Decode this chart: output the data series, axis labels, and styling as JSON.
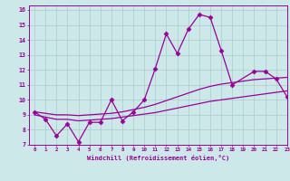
{
  "xlabel": "Windchill (Refroidissement éolien,°C)",
  "xlim": [
    -0.5,
    23
  ],
  "ylim": [
    7,
    16.3
  ],
  "bg_color": "#cce8e8",
  "line_color": "#990099",
  "grid_color": "#aacccc",
  "series": [
    {
      "x": [
        0,
        1,
        2,
        3,
        4,
        5,
        6,
        7,
        8,
        9,
        10,
        11,
        12,
        13,
        14,
        15,
        16,
        17,
        18,
        20,
        21,
        22,
        23
      ],
      "y": [
        9.2,
        8.7,
        7.6,
        8.4,
        7.2,
        8.5,
        8.5,
        10.0,
        8.6,
        9.2,
        10.0,
        12.1,
        14.4,
        13.1,
        14.7,
        15.7,
        15.5,
        13.3,
        11.0,
        11.9,
        11.9,
        11.4,
        10.2
      ],
      "marker": "D",
      "markersize": 2.5,
      "lw": 0.9
    },
    {
      "x": [
        0,
        1,
        2,
        3,
        4,
        5,
        6,
        7,
        8,
        9,
        10,
        11,
        12,
        13,
        14,
        15,
        16,
        17,
        18,
        19,
        20,
        21,
        22,
        23
      ],
      "y": [
        9.0,
        8.85,
        8.7,
        8.7,
        8.6,
        8.65,
        8.7,
        8.75,
        8.85,
        8.95,
        9.05,
        9.15,
        9.3,
        9.45,
        9.6,
        9.75,
        9.9,
        10.0,
        10.1,
        10.2,
        10.3,
        10.4,
        10.5,
        10.6
      ],
      "marker": null,
      "markersize": 0,
      "lw": 0.9
    },
    {
      "x": [
        0,
        1,
        2,
        3,
        4,
        5,
        6,
        7,
        8,
        9,
        10,
        11,
        12,
        13,
        14,
        15,
        16,
        17,
        18,
        19,
        20,
        21,
        22,
        23
      ],
      "y": [
        9.2,
        9.1,
        9.0,
        9.0,
        8.95,
        9.0,
        9.05,
        9.1,
        9.2,
        9.35,
        9.5,
        9.7,
        9.95,
        10.2,
        10.45,
        10.7,
        10.9,
        11.05,
        11.15,
        11.25,
        11.35,
        11.4,
        11.45,
        11.5
      ],
      "marker": null,
      "markersize": 0,
      "lw": 0.9
    }
  ]
}
